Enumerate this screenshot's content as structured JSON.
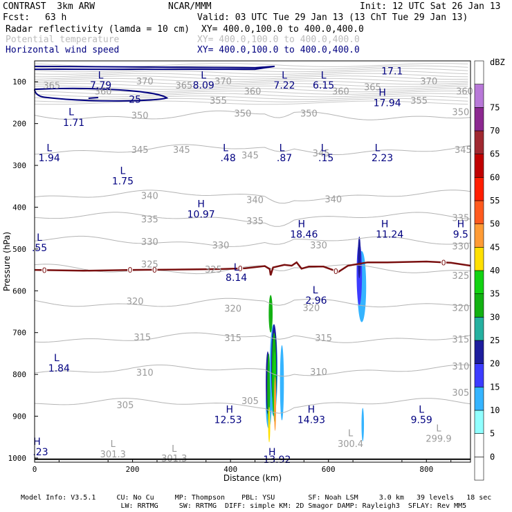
{
  "header": {
    "model": "CONTRAST  3km ARW",
    "org": "NCAR/MMM",
    "init": "Init: 12 UTC Sat 26 Jan 13",
    "fcst_label": "Fcst:",
    "fcst_value": "63 h",
    "valid": "Valid: 03 UTC Tue 29 Jan 13 (13 ChT Tue 29 Jan 13)",
    "fields": [
      {
        "name": "Radar reflectivity (lamda = 10 cm)",
        "xy": "XY= 400.0,100.0 to 400.0,400.0",
        "color": "#000000"
      },
      {
        "name": "Potential temperature",
        "xy": "XY= 400.0,100.0 to 400.0,400.0",
        "color": "#bbbbbb"
      },
      {
        "name": "Horizontal wind speed",
        "xy": "XY= 400.0,100.0 to 400.0,400.0",
        "color": "#000080"
      }
    ]
  },
  "footer": {
    "line1": "Model Info: V3.5.1     CU: No Cu     MP: Thompson    PBL: YSU        SF: Noah LSM     3.0 km   39 levels   18 sec",
    "line2": "                        LW: RRTMG     SW: RRTMG  DIFF: simple KM: 2D Smagor DAMP: Rayleigh3  SFLAY: Rev MM5"
  },
  "chart_data": {
    "type": "cross-section",
    "xlabel": "Distance (km)",
    "ylabel": "Pressure (hPa)",
    "xlim": [
      0,
      890
    ],
    "ylim": [
      1010,
      50
    ],
    "x_ticks": [
      0,
      200,
      400,
      600,
      800
    ],
    "y_ticks": [
      100,
      200,
      300,
      400,
      500,
      600,
      700,
      800,
      900,
      1000
    ],
    "colorbar": {
      "title": "dBZ",
      "levels": [
        0,
        5,
        10,
        15,
        20,
        25,
        30,
        35,
        40,
        45,
        50,
        55,
        60,
        65,
        70,
        75
      ],
      "colors": [
        "#ffffff",
        "#ffffff",
        "#90ffff",
        "#35b4ff",
        "#3c3cff",
        "#1d1d9d",
        "#25b0a0",
        "#12b112",
        "#12d212",
        "#ffe000",
        "#ff9b35",
        "#ff5a1e",
        "#ff1e00",
        "#c00000",
        "#a02830",
        "#8c2890",
        "#b878d8",
        "#ffffff"
      ]
    },
    "theta_contours": [
      {
        "level": 350,
        "pressure": 180
      },
      {
        "level": 345,
        "pressure": 262
      },
      {
        "level": 340,
        "pressure": 372
      },
      {
        "level": 335,
        "pressure": 425
      },
      {
        "level": 330,
        "pressure": 482
      },
      {
        "level": 325,
        "pressure": 548
      },
      {
        "level": 320,
        "pressure": 628
      },
      {
        "level": 315,
        "pressure": 712
      },
      {
        "level": 310,
        "pressure": 790
      },
      {
        "level": 305,
        "pressure": 870
      }
    ],
    "theta_labels": [
      {
        "text": "370",
        "x": 225,
        "p": 98
      },
      {
        "text": "370",
        "x": 385,
        "p": 98
      },
      {
        "text": "370",
        "x": 805,
        "p": 98
      },
      {
        "text": "365",
        "x": 35,
        "p": 108
      },
      {
        "text": "365",
        "x": 305,
        "p": 108
      },
      {
        "text": "365",
        "x": 690,
        "p": 112
      },
      {
        "text": "360",
        "x": 140,
        "p": 122
      },
      {
        "text": "360",
        "x": 445,
        "p": 122
      },
      {
        "text": "360",
        "x": 625,
        "p": 122
      },
      {
        "text": "360",
        "x": 878,
        "p": 122
      },
      {
        "text": "355",
        "x": 375,
        "p": 144
      },
      {
        "text": "355",
        "x": 785,
        "p": 144
      },
      {
        "text": "350",
        "x": 215,
        "p": 180
      },
      {
        "text": "350",
        "x": 425,
        "p": 175
      },
      {
        "text": "350",
        "x": 560,
        "p": 175
      },
      {
        "text": "350",
        "x": 870,
        "p": 172
      },
      {
        "text": "345",
        "x": 215,
        "p": 262
      },
      {
        "text": "345",
        "x": 300,
        "p": 262
      },
      {
        "text": "345",
        "x": 440,
        "p": 275
      },
      {
        "text": "345",
        "x": 585,
        "p": 270
      },
      {
        "text": "345",
        "x": 875,
        "p": 262
      },
      {
        "text": "340",
        "x": 235,
        "p": 372
      },
      {
        "text": "340",
        "x": 450,
        "p": 382
      },
      {
        "text": "340",
        "x": 610,
        "p": 380
      },
      {
        "text": "335",
        "x": 235,
        "p": 428
      },
      {
        "text": "335",
        "x": 450,
        "p": 432
      },
      {
        "text": "335",
        "x": 870,
        "p": 425
      },
      {
        "text": "330",
        "x": 235,
        "p": 482
      },
      {
        "text": "330",
        "x": 380,
        "p": 490
      },
      {
        "text": "330",
        "x": 580,
        "p": 490
      },
      {
        "text": "330",
        "x": 870,
        "p": 493
      },
      {
        "text": "325",
        "x": 235,
        "p": 536
      },
      {
        "text": "325",
        "x": 365,
        "p": 548
      },
      {
        "text": "325",
        "x": 870,
        "p": 563
      },
      {
        "text": "320",
        "x": 205,
        "p": 624
      },
      {
        "text": "320",
        "x": 405,
        "p": 642
      },
      {
        "text": "320",
        "x": 565,
        "p": 640
      },
      {
        "text": "320",
        "x": 870,
        "p": 640
      },
      {
        "text": "315",
        "x": 220,
        "p": 710
      },
      {
        "text": "315",
        "x": 405,
        "p": 712
      },
      {
        "text": "315",
        "x": 590,
        "p": 712
      },
      {
        "text": "315",
        "x": 870,
        "p": 715
      },
      {
        "text": "310",
        "x": 225,
        "p": 795
      },
      {
        "text": "310",
        "x": 580,
        "p": 793
      },
      {
        "text": "310",
        "x": 870,
        "p": 780
      },
      {
        "text": "305",
        "x": 185,
        "p": 873
      },
      {
        "text": "305",
        "x": 440,
        "p": 863
      },
      {
        "text": "305",
        "x": 870,
        "p": 843
      }
    ],
    "surface_theta_labels": [
      {
        "text": "L",
        "x": 160,
        "p": 965
      },
      {
        "text": "301.3",
        "x": 160,
        "p": 990
      },
      {
        "text": "L",
        "x": 285,
        "p": 977
      },
      {
        "text": "301.3",
        "x": 285,
        "p": 1000
      },
      {
        "text": "L",
        "x": 645,
        "p": 940
      },
      {
        "text": "300.4",
        "x": 645,
        "p": 965
      },
      {
        "text": "L",
        "x": 825,
        "p": 928
      },
      {
        "text": "299.9",
        "x": 825,
        "p": 953
      }
    ],
    "wind_labels": [
      {
        "text": "L",
        "x": 135,
        "p": 84
      },
      {
        "text": "7.79",
        "x": 135,
        "p": 108
      },
      {
        "text": "L",
        "x": 345,
        "p": 84
      },
      {
        "text": "8.09",
        "x": 345,
        "p": 108
      },
      {
        "text": "L",
        "x": 510,
        "p": 84
      },
      {
        "text": "7.22",
        "x": 510,
        "p": 108
      },
      {
        "text": "L",
        "x": 590,
        "p": 84
      },
      {
        "text": "6.15",
        "x": 590,
        "p": 108
      },
      {
        "text": "17.1",
        "x": 730,
        "p": 74
      },
      {
        "text": "25",
        "x": 205,
        "p": 142
      },
      {
        "text": "H",
        "x": 710,
        "p": 125
      },
      {
        "text": "17.94",
        "x": 720,
        "p": 150
      },
      {
        "text": "L",
        "x": 75,
        "p": 172
      },
      {
        "text": "1.71",
        "x": 80,
        "p": 197
      },
      {
        "text": "L",
        "x": 30,
        "p": 258
      },
      {
        "text": "1.94",
        "x": 30,
        "p": 282
      },
      {
        "text": "L",
        "x": 390,
        "p": 258
      },
      {
        "text": ".48",
        "x": 395,
        "p": 282
      },
      {
        "text": "L",
        "x": 505,
        "p": 258
      },
      {
        "text": ".87",
        "x": 510,
        "p": 282
      },
      {
        "text": "L",
        "x": 590,
        "p": 258
      },
      {
        "text": ".15",
        "x": 595,
        "p": 282
      },
      {
        "text": "L",
        "x": 700,
        "p": 258
      },
      {
        "text": "2.23",
        "x": 710,
        "p": 282
      },
      {
        "text": "L",
        "x": 180,
        "p": 312
      },
      {
        "text": "1.75",
        "x": 180,
        "p": 337
      },
      {
        "text": "H",
        "x": 340,
        "p": 392
      },
      {
        "text": "10.97",
        "x": 340,
        "p": 417
      },
      {
        "text": "H",
        "x": 545,
        "p": 440
      },
      {
        "text": "18.46",
        "x": 550,
        "p": 465
      },
      {
        "text": "H",
        "x": 715,
        "p": 440
      },
      {
        "text": "11.24",
        "x": 725,
        "p": 465
      },
      {
        "text": "H",
        "x": 870,
        "p": 440
      },
      {
        "text": "9.5",
        "x": 870,
        "p": 465
      },
      {
        "text": "L",
        "x": 10,
        "p": 472
      },
      {
        "text": ".55",
        "x": 10,
        "p": 497
      },
      {
        "text": "L",
        "x": 412,
        "p": 543
      },
      {
        "text": "8.14",
        "x": 412,
        "p": 568
      },
      {
        "text": "L",
        "x": 573,
        "p": 598
      },
      {
        "text": "2.96",
        "x": 575,
        "p": 623
      },
      {
        "text": "L",
        "x": 45,
        "p": 760
      },
      {
        "text": "1.84",
        "x": 50,
        "p": 785
      },
      {
        "text": "H",
        "x": 398,
        "p": 883
      },
      {
        "text": "12.53",
        "x": 395,
        "p": 908
      },
      {
        "text": "H",
        "x": 565,
        "p": 883
      },
      {
        "text": "14.93",
        "x": 565,
        "p": 908
      },
      {
        "text": "L",
        "x": 790,
        "p": 883
      },
      {
        "text": "9.59",
        "x": 790,
        "p": 908
      },
      {
        "text": "H",
        "x": 5,
        "p": 960
      },
      {
        "text": ".23",
        "x": 12,
        "p": 985
      },
      {
        "text": "H",
        "x": 485,
        "p": 985
      },
      {
        "text": "13.92",
        "x": 495,
        "p": 1003
      }
    ],
    "zero_isotherm": {
      "label": "0",
      "points": [
        [
          0,
          550
        ],
        [
          100,
          552
        ],
        [
          200,
          550
        ],
        [
          300,
          549
        ],
        [
          380,
          548
        ],
        [
          430,
          546
        ],
        [
          470,
          541
        ],
        [
          480,
          548
        ],
        [
          482,
          563
        ],
        [
          487,
          544
        ],
        [
          510,
          538
        ],
        [
          525,
          540
        ],
        [
          535,
          532
        ],
        [
          545,
          547
        ],
        [
          560,
          542
        ],
        [
          590,
          542
        ],
        [
          620,
          555
        ],
        [
          640,
          540
        ],
        [
          680,
          532
        ],
        [
          720,
          532
        ],
        [
          800,
          530
        ],
        [
          850,
          533
        ],
        [
          890,
          540
        ]
      ],
      "label_x": [
        20,
        195,
        245,
        420,
        615,
        835
      ]
    },
    "reflectivity_cells": [
      {
        "x": 478,
        "p": 870,
        "dx": 12,
        "dp": 120,
        "dbz": 12
      },
      {
        "x": 476,
        "p": 820,
        "dx": 8,
        "dp": 150,
        "dbz": 22
      },
      {
        "x": 478,
        "p": 835,
        "dx": 6,
        "dp": 170,
        "dbz": 30
      },
      {
        "x": 479,
        "p": 920,
        "dx": 4,
        "dp": 85,
        "dbz": 42
      },
      {
        "x": 488,
        "p": 790,
        "dx": 16,
        "dp": 220,
        "dbz": 12
      },
      {
        "x": 489,
        "p": 780,
        "dx": 12,
        "dp": 200,
        "dbz": 22
      },
      {
        "x": 489,
        "p": 800,
        "dx": 9,
        "dp": 200,
        "dbz": 32
      },
      {
        "x": 490,
        "p": 830,
        "dx": 6,
        "dp": 170,
        "dbz": 37
      },
      {
        "x": 491,
        "p": 870,
        "dx": 4,
        "dp": 130,
        "dbz": 48
      },
      {
        "x": 482,
        "p": 655,
        "dx": 8,
        "dp": 90,
        "dbz": 30
      },
      {
        "x": 505,
        "p": 820,
        "dx": 8,
        "dp": 180,
        "dbz": 12
      },
      {
        "x": 668,
        "p": 590,
        "dx": 18,
        "dp": 170,
        "dbz": 12
      },
      {
        "x": 663,
        "p": 560,
        "dx": 11,
        "dp": 150,
        "dbz": 17
      },
      {
        "x": 663,
        "p": 520,
        "dx": 6,
        "dp": 100,
        "dbz": 22
      },
      {
        "x": 670,
        "p": 920,
        "dx": 5,
        "dp": 80,
        "dbz": 12
      }
    ],
    "wind_contours": [
      {
        "label": "25",
        "p_top": 118,
        "p_bot": 146
      },
      {
        "label": "25",
        "p_top": 63,
        "p_bot": 70
      }
    ]
  }
}
